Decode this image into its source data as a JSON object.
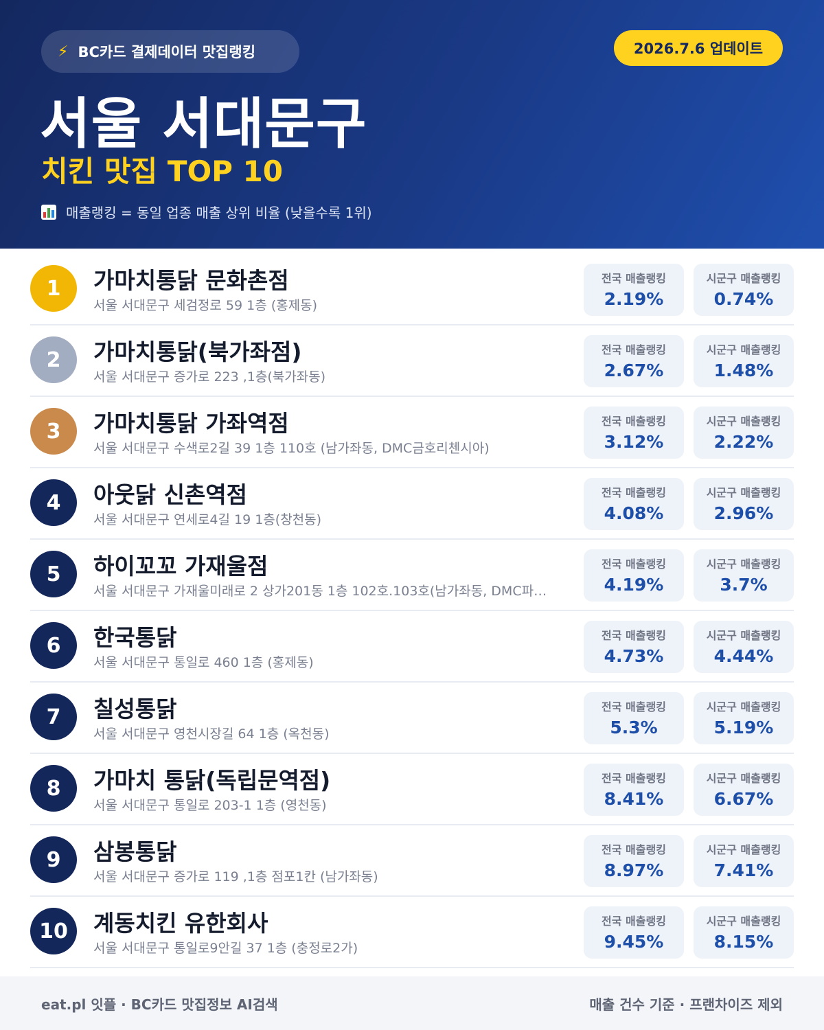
{
  "header": {
    "brand_label": "BC카드 결제데이터 맛집랭킹",
    "brand_icon": "lightning-bolt-icon",
    "update_label": "2026.7.6 업데이트",
    "title": "서울 서대문구",
    "subtitle": "치킨 맛집 TOP 10",
    "note_icon": "bar-chart-icon",
    "note": "매출랭킹 = 동일 업종 매출 상위 비율 (낮을수록 1위)"
  },
  "labels": {
    "national": "전국 매출랭킹",
    "local": "시군구 매출랭킹"
  },
  "colors": {
    "gold": "#f2b705",
    "silver": "#a3adc2",
    "bronze": "#c98a4b",
    "navy": "#14275a"
  },
  "restaurants": [
    {
      "rank": "1",
      "name": "가마치통닭 문화촌점",
      "address": "서울 서대문구 세검정로 59 1층 (홍제동)",
      "national": "2.19%",
      "local": "0.74%"
    },
    {
      "rank": "2",
      "name": "가마치통닭(북가좌점)",
      "address": "서울 서대문구 증가로 223 ,1층(북가좌동)",
      "national": "2.67%",
      "local": "1.48%"
    },
    {
      "rank": "3",
      "name": "가마치통닭 가좌역점",
      "address": "서울 서대문구 수색로2길 39 1층 110호 (남가좌동, DMC금호리첸시아)",
      "national": "3.12%",
      "local": "2.22%"
    },
    {
      "rank": "4",
      "name": "아웃닭 신촌역점",
      "address": "서울 서대문구 연세로4길 19 1층(창천동)",
      "national": "4.08%",
      "local": "2.96%"
    },
    {
      "rank": "5",
      "name": "하이꼬꼬 가재울점",
      "address": "서울 서대문구 가재울미래로 2 상가201동 1층 102호.103호(남가좌동, DMC파…",
      "national": "4.19%",
      "local": "3.7%"
    },
    {
      "rank": "6",
      "name": "한국통닭",
      "address": "서울 서대문구 통일로 460 1층 (홍제동)",
      "national": "4.73%",
      "local": "4.44%"
    },
    {
      "rank": "7",
      "name": "칠성통닭",
      "address": "서울 서대문구 영천시장길 64 1층 (옥천동)",
      "national": "5.3%",
      "local": "5.19%"
    },
    {
      "rank": "8",
      "name": "가마치 통닭(독립문역점)",
      "address": "서울 서대문구 통일로 203-1 1층 (영천동)",
      "national": "8.41%",
      "local": "6.67%"
    },
    {
      "rank": "9",
      "name": "삼봉통닭",
      "address": "서울 서대문구 증가로 119 ,1층 점포1칸 (남가좌동)",
      "national": "8.97%",
      "local": "7.41%"
    },
    {
      "rank": "10",
      "name": "계동치킨 유한회사",
      "address": "서울 서대문구 통일로9안길 37 1층 (충정로2가)",
      "national": "9.45%",
      "local": "8.15%"
    }
  ],
  "footer": {
    "left": "eat.pl 잇플 · BC카드 맛집정보 AI검색",
    "right": "매출 건수 기준 · 프랜차이즈 제외"
  }
}
